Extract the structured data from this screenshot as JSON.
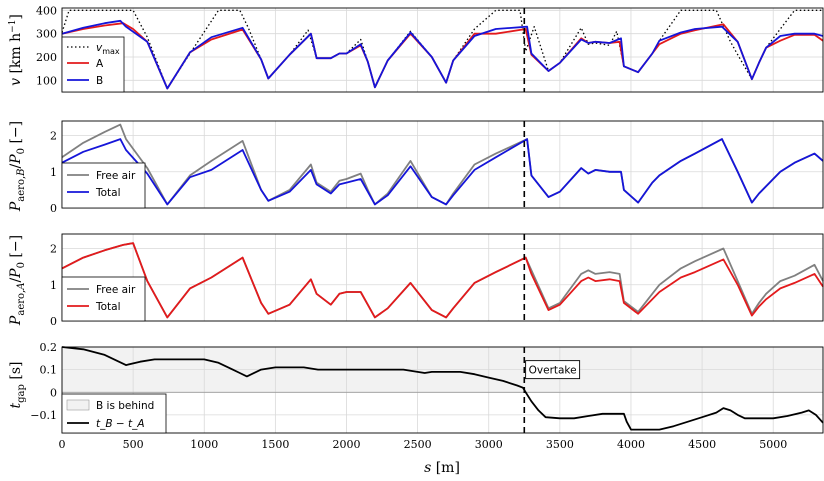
{
  "chart_data": [
    {
      "type": "line",
      "ylabel": "v [km h⁻¹]",
      "ylim": [
        50,
        410
      ],
      "yticks": [
        100,
        200,
        300,
        400
      ],
      "grid": true,
      "legend_placement": "bottom-left",
      "series": [
        {
          "name": "v_max",
          "color": "#000000",
          "style": "dotted",
          "x": [
            0,
            50,
            500,
            600,
            740,
            900,
            1100,
            1250,
            1310,
            1400,
            1450,
            1600,
            1730,
            1790,
            1890,
            1950,
            2000,
            2100,
            2150,
            2200,
            2290,
            2450,
            2600,
            2700,
            2750,
            2900,
            3050,
            3150,
            3220,
            3260,
            3320,
            3420,
            3500,
            3650,
            3700,
            3750,
            3850,
            3900,
            3950,
            4050,
            4150,
            4200,
            4350,
            4450,
            4600,
            4700,
            4750,
            4850,
            4900,
            4950,
            5050,
            5150,
            5300,
            5350
          ],
          "y": [
            305,
            400,
            400,
            285,
            65,
            215,
            400,
            400,
            325,
            190,
            108,
            210,
            315,
            195,
            195,
            215,
            215,
            275,
            180,
            70,
            185,
            310,
            200,
            90,
            185,
            320,
            400,
            400,
            400,
            225,
            330,
            140,
            175,
            325,
            255,
            260,
            250,
            310,
            160,
            135,
            215,
            270,
            400,
            400,
            400,
            265,
            210,
            105,
            175,
            240,
            320,
            400,
            400,
            400
          ]
        },
        {
          "name": "A",
          "color": "#e31a1c",
          "x": [
            0,
            150,
            300,
            430,
            500,
            600,
            740,
            900,
            1050,
            1270,
            1400,
            1450,
            1600,
            1750,
            1790,
            1890,
            1950,
            2000,
            2100,
            2150,
            2200,
            2290,
            2450,
            2600,
            2700,
            2750,
            2900,
            3050,
            3260,
            3300,
            3420,
            3500,
            3650,
            3700,
            3750,
            3850,
            3920,
            3950,
            4050,
            4150,
            4200,
            4350,
            4450,
            4650,
            4750,
            4850,
            4900,
            4950,
            5050,
            5150,
            5290,
            5350
          ],
          "y": [
            300,
            320,
            335,
            345,
            320,
            265,
            65,
            220,
            275,
            318,
            190,
            108,
            210,
            300,
            195,
            195,
            215,
            215,
            250,
            180,
            70,
            185,
            300,
            200,
            90,
            185,
            300,
            300,
            320,
            210,
            140,
            175,
            280,
            260,
            265,
            260,
            265,
            160,
            135,
            215,
            255,
            300,
            315,
            340,
            265,
            105,
            175,
            240,
            270,
            295,
            295,
            270
          ]
        },
        {
          "name": "B",
          "color": "#1515d9",
          "x": [
            0,
            150,
            300,
            410,
            450,
            600,
            740,
            900,
            1050,
            1270,
            1400,
            1450,
            1600,
            1750,
            1790,
            1890,
            1950,
            2000,
            2100,
            2150,
            2200,
            2290,
            2450,
            2600,
            2700,
            2750,
            2900,
            3050,
            3270,
            3300,
            3420,
            3500,
            3650,
            3700,
            3750,
            3850,
            3930,
            3950,
            4050,
            4150,
            4200,
            4350,
            4450,
            4640,
            4750,
            4850,
            4900,
            4950,
            5050,
            5150,
            5290,
            5350
          ],
          "y": [
            300,
            325,
            345,
            355,
            330,
            265,
            65,
            220,
            285,
            325,
            190,
            108,
            210,
            300,
            195,
            195,
            215,
            215,
            255,
            180,
            70,
            185,
            305,
            200,
            90,
            185,
            290,
            320,
            330,
            215,
            140,
            175,
            275,
            260,
            265,
            260,
            280,
            160,
            135,
            215,
            270,
            305,
            320,
            330,
            265,
            105,
            175,
            240,
            290,
            300,
            300,
            290
          ]
        }
      ]
    },
    {
      "type": "line",
      "ylabel": "P_aero,B / P_0 [−]",
      "ylim": [
        0,
        2.4
      ],
      "yticks": [
        0,
        1,
        2
      ],
      "grid": true,
      "legend_placement": "bottom-left",
      "series": [
        {
          "name": "Free air",
          "color": "#808080",
          "x": [
            0,
            150,
            300,
            410,
            450,
            600,
            740,
            900,
            1050,
            1270,
            1400,
            1450,
            1600,
            1750,
            1790,
            1890,
            1950,
            2000,
            2100,
            2150,
            2200,
            2290,
            2450,
            2600,
            2700,
            2750,
            2900,
            3050,
            3270,
            3300,
            3420,
            3500,
            3650,
            3700,
            3750,
            3850,
            3930,
            3950,
            4050,
            4150,
            4200,
            4350,
            4450,
            4640,
            4750,
            4850,
            4900,
            4950,
            5050,
            5150,
            5290,
            5350
          ],
          "y": [
            1.4,
            1.8,
            2.1,
            2.3,
            1.9,
            1.1,
            0.1,
            0.9,
            1.3,
            1.85,
            0.5,
            0.2,
            0.5,
            1.2,
            0.7,
            0.45,
            0.75,
            0.8,
            0.95,
            0.5,
            0.1,
            0.4,
            1.3,
            0.3,
            0.1,
            0.4,
            1.2,
            1.5,
            1.9,
            0.9,
            0.3,
            0.45,
            1.1,
            0.95,
            1.05,
            1.0,
            1.0,
            0.5,
            0.15,
            0.7,
            0.9,
            1.3,
            1.5,
            1.9,
            1.0,
            0.15,
            0.4,
            0.6,
            1.0,
            1.25,
            1.5,
            1.3
          ]
        },
        {
          "name": "Total",
          "color": "#1515d9",
          "x": [
            0,
            150,
            300,
            410,
            450,
            600,
            740,
            900,
            1050,
            1270,
            1400,
            1450,
            1600,
            1750,
            1790,
            1890,
            1950,
            2000,
            2100,
            2150,
            2200,
            2290,
            2450,
            2600,
            2700,
            2750,
            2900,
            3050,
            3270,
            3300,
            3420,
            3500,
            3650,
            3700,
            3750,
            3850,
            3930,
            3950,
            4050,
            4150,
            4200,
            4350,
            4450,
            4640,
            4750,
            4850,
            4900,
            4950,
            5050,
            5150,
            5290,
            5350
          ],
          "y": [
            1.25,
            1.55,
            1.75,
            1.9,
            1.6,
            0.95,
            0.1,
            0.85,
            1.05,
            1.6,
            0.5,
            0.2,
            0.45,
            1.05,
            0.65,
            0.4,
            0.65,
            0.7,
            0.8,
            0.45,
            0.1,
            0.35,
            1.15,
            0.3,
            0.1,
            0.35,
            1.05,
            1.4,
            1.9,
            0.9,
            0.3,
            0.45,
            1.1,
            0.95,
            1.05,
            1.0,
            1.0,
            0.5,
            0.15,
            0.7,
            0.9,
            1.3,
            1.5,
            1.9,
            1.0,
            0.15,
            0.4,
            0.6,
            1.0,
            1.25,
            1.5,
            1.3
          ]
        }
      ]
    },
    {
      "type": "line",
      "ylabel": "P_aero,A / P_0 [−]",
      "ylim": [
        0,
        2.4
      ],
      "yticks": [
        0,
        1,
        2
      ],
      "grid": true,
      "legend_placement": "bottom-left",
      "series": [
        {
          "name": "Free air",
          "color": "#808080",
          "x": [
            0,
            150,
            300,
            430,
            500,
            600,
            740,
            900,
            1050,
            1270,
            1400,
            1450,
            1600,
            1750,
            1790,
            1890,
            1950,
            2000,
            2100,
            2150,
            2200,
            2290,
            2450,
            2600,
            2700,
            2750,
            2900,
            3050,
            3260,
            3300,
            3420,
            3500,
            3650,
            3700,
            3750,
            3850,
            3920,
            3950,
            4050,
            4150,
            4200,
            4350,
            4450,
            4650,
            4750,
            4850,
            4900,
            4950,
            5050,
            5150,
            5290,
            5350
          ],
          "y": [
            1.45,
            1.75,
            1.95,
            2.1,
            2.15,
            1.1,
            0.1,
            0.9,
            1.2,
            1.75,
            0.5,
            0.2,
            0.45,
            1.15,
            0.75,
            0.45,
            0.75,
            0.8,
            0.8,
            0.45,
            0.1,
            0.35,
            1.05,
            0.3,
            0.1,
            0.35,
            1.05,
            1.35,
            1.75,
            1.4,
            0.35,
            0.5,
            1.3,
            1.4,
            1.3,
            1.35,
            1.3,
            0.55,
            0.25,
            0.75,
            1.0,
            1.45,
            1.65,
            2.0,
            1.1,
            0.2,
            0.5,
            0.75,
            1.1,
            1.25,
            1.55,
            1.1
          ]
        },
        {
          "name": "Total",
          "color": "#e31a1c",
          "x": [
            0,
            150,
            300,
            430,
            500,
            600,
            740,
            900,
            1050,
            1270,
            1400,
            1450,
            1600,
            1750,
            1790,
            1890,
            1950,
            2000,
            2100,
            2150,
            2200,
            2290,
            2450,
            2600,
            2700,
            2750,
            2900,
            3050,
            3260,
            3300,
            3420,
            3500,
            3650,
            3700,
            3750,
            3850,
            3920,
            3950,
            4050,
            4150,
            4200,
            4350,
            4450,
            4650,
            4750,
            4850,
            4900,
            4950,
            5050,
            5150,
            5290,
            5350
          ],
          "y": [
            1.45,
            1.75,
            1.95,
            2.1,
            2.15,
            1.1,
            0.1,
            0.9,
            1.2,
            1.75,
            0.5,
            0.2,
            0.45,
            1.15,
            0.75,
            0.45,
            0.75,
            0.8,
            0.8,
            0.45,
            0.1,
            0.35,
            1.05,
            0.3,
            0.1,
            0.35,
            1.05,
            1.35,
            1.75,
            1.3,
            0.3,
            0.45,
            1.1,
            1.2,
            1.1,
            1.15,
            1.1,
            0.5,
            0.2,
            0.6,
            0.8,
            1.2,
            1.35,
            1.7,
            1.0,
            0.15,
            0.4,
            0.6,
            0.9,
            1.05,
            1.3,
            0.95
          ]
        }
      ]
    },
    {
      "type": "line",
      "ylabel": "t_gap [s]",
      "xlabel": "s [m]",
      "xlim": [
        0,
        5350
      ],
      "xticks": [
        0,
        500,
        1000,
        1500,
        2000,
        2500,
        3000,
        3500,
        4000,
        4500,
        5000
      ],
      "ylim": [
        -0.18,
        0.2
      ],
      "yticks": [
        -0.1,
        0,
        0.1,
        0.2
      ],
      "grid": true,
      "legend_placement": "bottom-left",
      "shaded_region": {
        "name": "B is behind",
        "ymin": 0,
        "ymax": 0.2,
        "color": "#f2f2f2"
      },
      "series": [
        {
          "name": "t_B − t_A",
          "color": "#000000",
          "x": [
            0,
            150,
            300,
            400,
            450,
            550,
            650,
            800,
            1000,
            1100,
            1200,
            1250,
            1300,
            1400,
            1500,
            1600,
            1700,
            1750,
            1800,
            1900,
            2000,
            2100,
            2200,
            2300,
            2400,
            2500,
            2550,
            2600,
            2700,
            2800,
            2900,
            3000,
            3100,
            3200,
            3240,
            3260,
            3300,
            3350,
            3400,
            3500,
            3600,
            3700,
            3800,
            3900,
            3950,
            3970,
            4000,
            4200,
            4300,
            4400,
            4500,
            4600,
            4650,
            4700,
            4750,
            4800,
            4900,
            5000,
            5100,
            5200,
            5250,
            5300,
            5350
          ],
          "y": [
            0.2,
            0.19,
            0.165,
            0.135,
            0.12,
            0.135,
            0.145,
            0.145,
            0.145,
            0.13,
            0.1,
            0.085,
            0.07,
            0.1,
            0.11,
            0.11,
            0.11,
            0.105,
            0.1,
            0.1,
            0.1,
            0.1,
            0.1,
            0.1,
            0.1,
            0.09,
            0.085,
            0.09,
            0.09,
            0.09,
            0.08,
            0.065,
            0.05,
            0.03,
            0.02,
            0.0,
            -0.04,
            -0.08,
            -0.11,
            -0.115,
            -0.115,
            -0.105,
            -0.095,
            -0.095,
            -0.095,
            -0.13,
            -0.165,
            -0.165,
            -0.15,
            -0.13,
            -0.11,
            -0.09,
            -0.07,
            -0.08,
            -0.1,
            -0.115,
            -0.115,
            -0.115,
            -0.105,
            -0.09,
            -0.08,
            -0.1,
            -0.135
          ]
        }
      ],
      "vline": {
        "x": 3250,
        "style": "dashed"
      },
      "annotation": {
        "text": "Overtake",
        "x": 3400,
        "y": 0.1
      }
    }
  ]
}
